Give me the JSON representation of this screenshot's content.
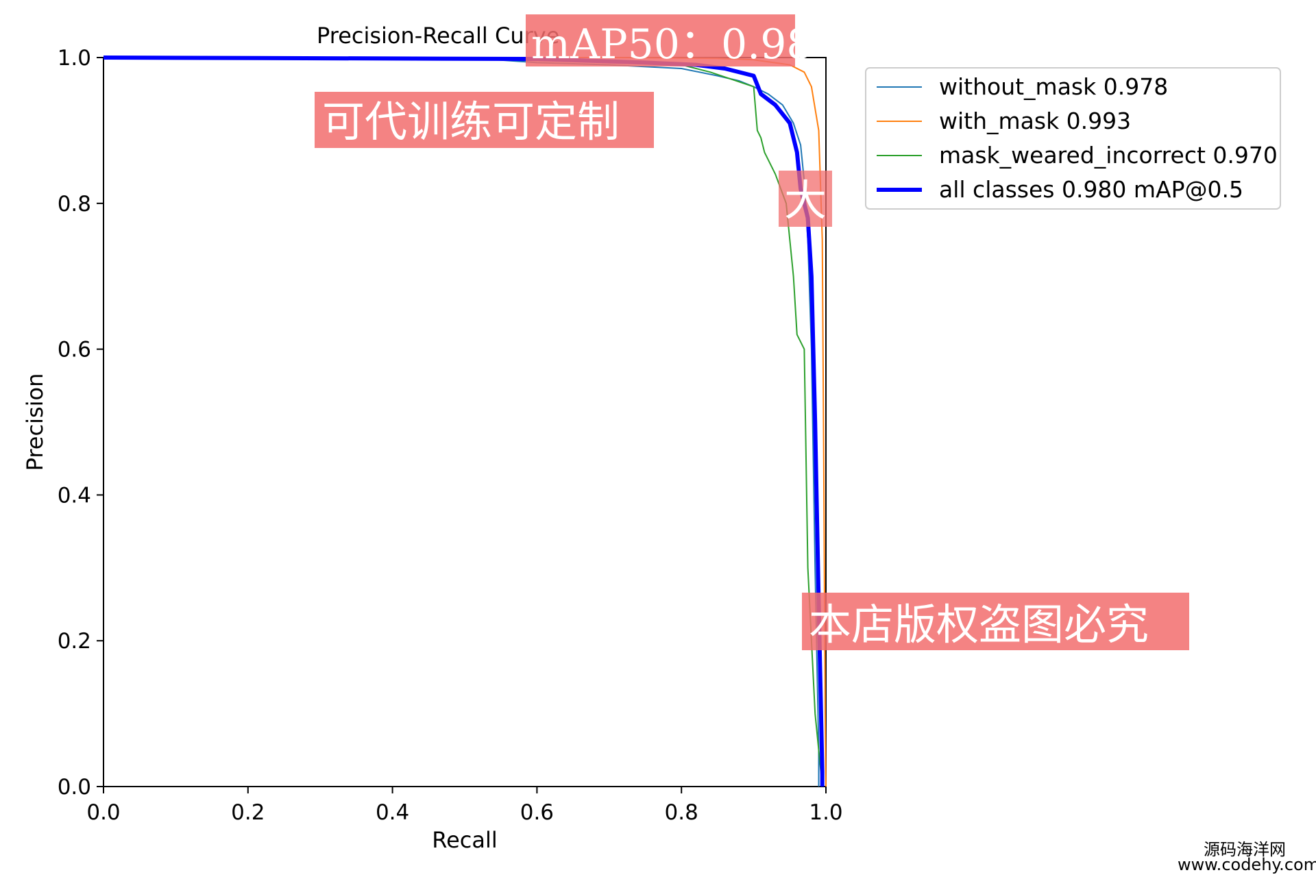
{
  "chart_data": {
    "type": "line",
    "title": "Precision-Recall Curve",
    "xlabel": "Recall",
    "ylabel": "Precision",
    "xlim": [
      0,
      1
    ],
    "ylim": [
      0,
      1
    ],
    "xticks": [
      "0.0",
      "0.2",
      "0.4",
      "0.6",
      "0.8",
      "1.0"
    ],
    "yticks": [
      "0.0",
      "0.2",
      "0.4",
      "0.6",
      "0.8",
      "1.0"
    ],
    "grid": false,
    "legend_position": "outside-top-right",
    "series": [
      {
        "name": "without_mask 0.978",
        "color": "#1f77b4",
        "points": [
          [
            0,
            1
          ],
          [
            0.5,
            1
          ],
          [
            0.6,
            0.993
          ],
          [
            0.7,
            0.99
          ],
          [
            0.8,
            0.985
          ],
          [
            0.85,
            0.975
          ],
          [
            0.88,
            0.968
          ],
          [
            0.9,
            0.96
          ],
          [
            0.92,
            0.95
          ],
          [
            0.94,
            0.935
          ],
          [
            0.955,
            0.91
          ],
          [
            0.965,
            0.88
          ],
          [
            0.97,
            0.83
          ],
          [
            0.975,
            0.75
          ],
          [
            0.98,
            0.6
          ],
          [
            0.985,
            0.3
          ],
          [
            0.99,
            0.05
          ],
          [
            0.99,
            0
          ]
        ]
      },
      {
        "name": "with_mask 0.993",
        "color": "#ff7f0e",
        "points": [
          [
            0,
            1
          ],
          [
            0.7,
            1
          ],
          [
            0.85,
            0.999
          ],
          [
            0.9,
            0.997
          ],
          [
            0.95,
            0.99
          ],
          [
            0.97,
            0.98
          ],
          [
            0.98,
            0.96
          ],
          [
            0.99,
            0.9
          ],
          [
            0.995,
            0.75
          ],
          [
            0.997,
            0.45
          ],
          [
            0.999,
            0.1
          ],
          [
            1,
            0
          ]
        ]
      },
      {
        "name": "mask_weared_incorrect 0.970",
        "color": "#2ca02c",
        "points": [
          [
            0,
            1
          ],
          [
            0.6,
            1
          ],
          [
            0.8,
            0.99
          ],
          [
            0.84,
            0.98
          ],
          [
            0.87,
            0.97
          ],
          [
            0.9,
            0.96
          ],
          [
            0.905,
            0.9
          ],
          [
            0.91,
            0.89
          ],
          [
            0.915,
            0.87
          ],
          [
            0.93,
            0.84
          ],
          [
            0.945,
            0.8
          ],
          [
            0.955,
            0.7
          ],
          [
            0.96,
            0.62
          ],
          [
            0.97,
            0.6
          ],
          [
            0.975,
            0.3
          ],
          [
            0.985,
            0.1
          ],
          [
            0.99,
            0.05
          ],
          [
            0.995,
            0
          ]
        ]
      },
      {
        "name": "all classes 0.980 mAP@0.5",
        "color": "#0000ff",
        "width": 6,
        "points": [
          [
            0,
            1
          ],
          [
            0.6,
            0.998
          ],
          [
            0.75,
            0.993
          ],
          [
            0.82,
            0.99
          ],
          [
            0.86,
            0.985
          ],
          [
            0.9,
            0.975
          ],
          [
            0.91,
            0.95
          ],
          [
            0.93,
            0.935
          ],
          [
            0.95,
            0.91
          ],
          [
            0.96,
            0.87
          ],
          [
            0.965,
            0.82
          ],
          [
            0.975,
            0.78
          ],
          [
            0.98,
            0.7
          ],
          [
            0.985,
            0.5
          ],
          [
            0.99,
            0.25
          ],
          [
            0.995,
            0.02
          ],
          [
            0.995,
            0
          ]
        ]
      }
    ]
  },
  "watermarks": {
    "map_badge": "mAP50：0.98",
    "custom_training": "可代训练可定制",
    "partial_mark": "大",
    "copyright": "本店版权盗图必究"
  },
  "footer": {
    "site_name": "源码海洋网",
    "site_url": "www.codehy.com"
  }
}
